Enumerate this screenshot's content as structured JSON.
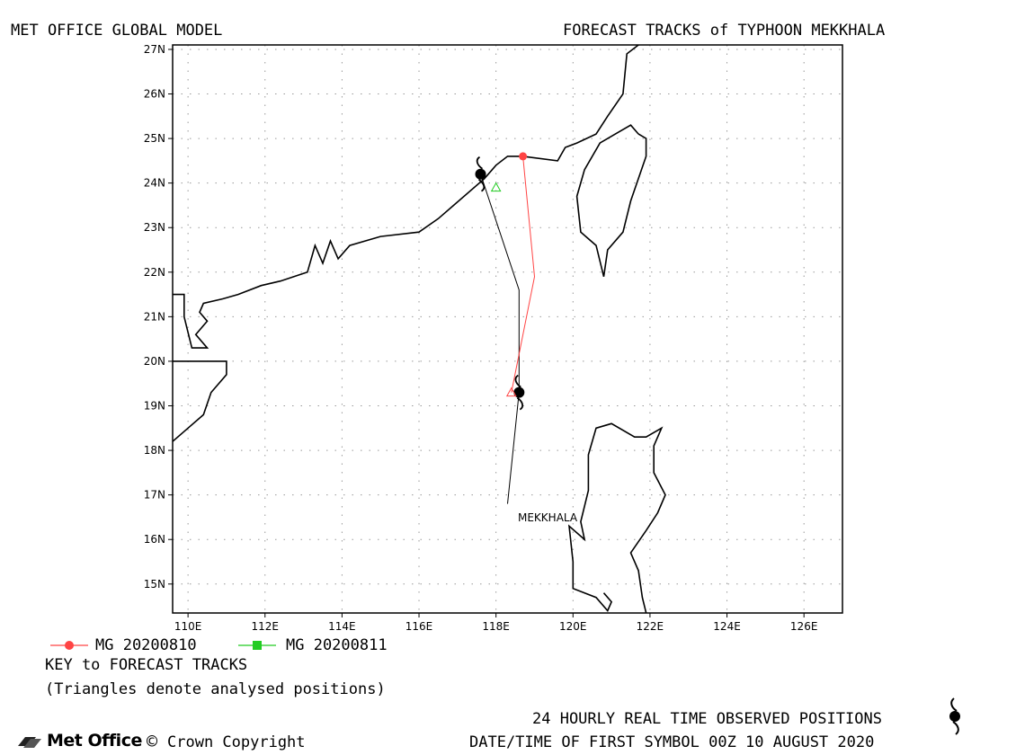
{
  "header": {
    "left_title": "MET OFFICE GLOBAL MODEL",
    "right_title": "FORECAST TRACKS of TYPHOON MEKKHALA"
  },
  "axes": {
    "lat_labels": [
      "15N",
      "16N",
      "17N",
      "18N",
      "19N",
      "20N",
      "21N",
      "22N",
      "23N",
      "24N",
      "25N",
      "26N",
      "27N"
    ],
    "lon_labels": [
      "110E",
      "112E",
      "114E",
      "116E",
      "118E",
      "120E",
      "122E",
      "124E",
      "126E"
    ],
    "lat_range": [
      14.35,
      27.1
    ],
    "lon_range": [
      109.6,
      127.0
    ],
    "grid": true
  },
  "storm_label": "MEKKHALA",
  "tracks": [
    {
      "name": "MG 20200810",
      "color": "#ff4444",
      "points": [
        [
          118.4,
          19.3
        ],
        [
          119.0,
          21.9
        ],
        [
          118.7,
          24.6
        ]
      ]
    },
    {
      "name": "MG 20200811",
      "color": "#22cc22",
      "points": [
        [
          118.0,
          23.9
        ]
      ]
    }
  ],
  "observed_track": {
    "color": "#000000",
    "points": [
      [
        118.3,
        16.8
      ],
      [
        118.6,
        19.3
      ],
      [
        118.6,
        21.6
      ],
      [
        117.6,
        24.2
      ]
    ],
    "symbols": [
      [
        118.6,
        19.3
      ],
      [
        117.6,
        24.2
      ]
    ]
  },
  "legend": {
    "entries": [
      "MG 20200810",
      "MG 20200811"
    ],
    "key_title": "KEY to FORECAST TRACKS",
    "key_note": "(Triangles denote analysed positions)"
  },
  "footer": {
    "logo": "Met Office",
    "copyright": "Crown Copyright",
    "observed_note": "24 HOURLY REAL TIME OBSERVED POSITIONS",
    "datetime": "DATE/TIME OF FIRST SYMBOL 00Z 10 AUGUST 2020"
  },
  "colors": {
    "frame": "#000000",
    "grid": "#999999",
    "coast": "#000000"
  }
}
